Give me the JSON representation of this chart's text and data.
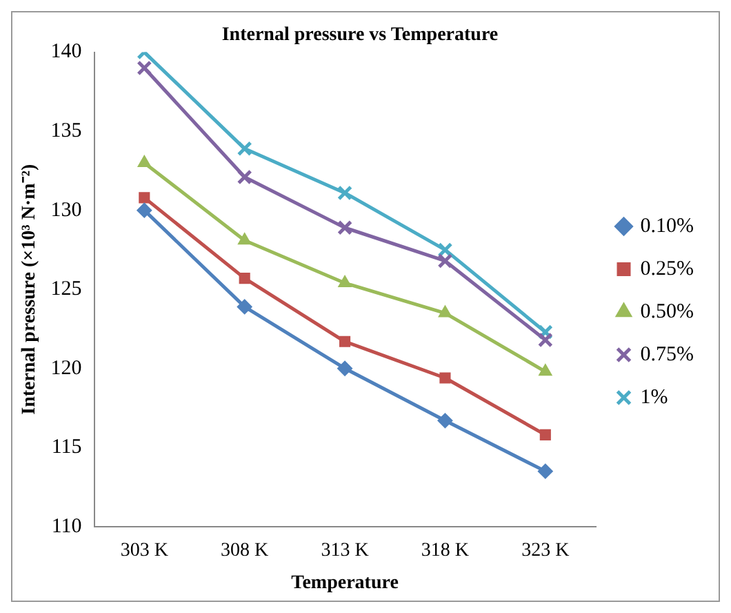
{
  "chart_data": {
    "type": "line",
    "title": "Internal pressure vs Temperature",
    "xlabel": "Temperature",
    "ylabel": "Internal pressure (×10³ N·m⁻²)",
    "categories": [
      "303 K",
      "308 K",
      "313 K",
      "318 K",
      "323 K"
    ],
    "series": [
      {
        "name": "0.10%",
        "color": "#4f81bd",
        "marker": "diamond",
        "values": [
          130,
          123.9,
          120,
          116.7,
          113.5
        ]
      },
      {
        "name": "0.25%",
        "color": "#c0504d",
        "marker": "square",
        "values": [
          130.8,
          125.7,
          121.7,
          119.4,
          115.8
        ]
      },
      {
        "name": "0.50%",
        "color": "#9bbb59",
        "marker": "triangle",
        "values": [
          133,
          128.1,
          125.4,
          123.5,
          119.8
        ]
      },
      {
        "name": "0.75%",
        "color": "#8064a2",
        "marker": "cross",
        "values": [
          139,
          132.1,
          128.9,
          126.8,
          121.8
        ]
      },
      {
        "name": "1%",
        "color": "#4bacc6",
        "marker": "cross",
        "values": [
          140,
          133.9,
          131.1,
          127.5,
          122.3
        ]
      }
    ],
    "ylim": [
      110,
      140
    ],
    "yticks": [
      110,
      115,
      120,
      125,
      130,
      135,
      140
    ],
    "grid": false,
    "legend": "right",
    "line_style": "solid"
  }
}
